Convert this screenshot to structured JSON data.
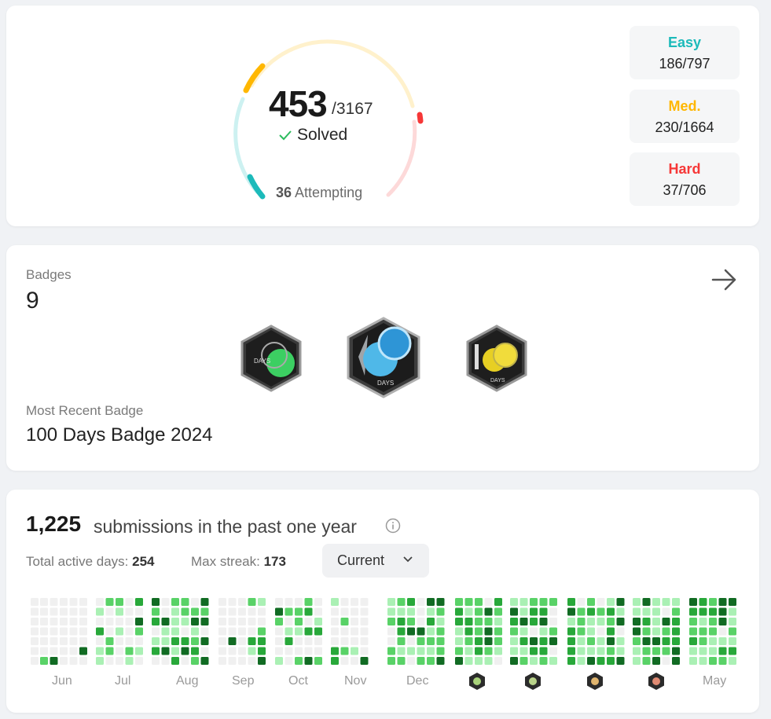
{
  "solved": {
    "count": "453",
    "total": "/3167",
    "label": "Solved",
    "attempting_count": "36",
    "attempting_label": "Attempting"
  },
  "difficulty": [
    {
      "name": "Easy",
      "value": "186/797",
      "color": "#1cbaba"
    },
    {
      "name": "Med.",
      "value": "230/1664",
      "color": "#ffb700"
    },
    {
      "name": "Hard",
      "value": "37/706",
      "color": "#f63737"
    }
  ],
  "badges": {
    "label": "Badges",
    "count": "9",
    "recent_label": "Most Recent Badge",
    "recent_name": "100 Days Badge 2024",
    "items": [
      "50-days-badge-icon",
      "200-days-badge-icon",
      "100-days-badge-icon"
    ]
  },
  "calendar": {
    "submissions": "1,225",
    "submissions_text": "submissions in the past one year",
    "active_days_label": "Total active days:",
    "active_days": "254",
    "max_streak_label": "Max streak:",
    "max_streak": "173",
    "dropdown_value": "Current",
    "months": [
      "Jun",
      "Jul",
      "Aug",
      "Sep",
      "Oct",
      "Nov",
      "Dec",
      "May"
    ],
    "level_colors": [
      "#ebedf0",
      "#aaf0b4",
      "#59d267",
      "#28a83a",
      "#116b23"
    ]
  }
}
